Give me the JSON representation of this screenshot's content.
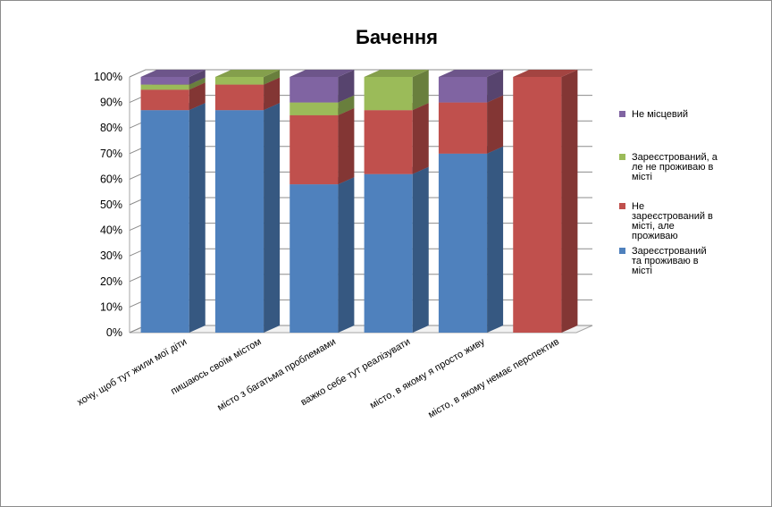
{
  "chart_data": {
    "type": "bar",
    "stacked": true,
    "percent_stacked": true,
    "three_d": true,
    "title": "Бачення",
    "xlabel": "",
    "ylabel": "",
    "ylim": [
      0,
      100
    ],
    "y_ticks": [
      "0%",
      "10%",
      "20%",
      "30%",
      "40%",
      "50%",
      "60%",
      "70%",
      "80%",
      "90%",
      "100%"
    ],
    "grid": true,
    "legend_position": "right",
    "categories": [
      "хочу, щоб тут жили мої діти",
      "пишаюсь своїм містом",
      "місто з багатьма проблемами",
      "важко себе тут реалізувати",
      "місто, в якому я просто живу",
      "місто, в якому немає перспектив"
    ],
    "series": [
      {
        "name": "Зареєстрований та проживаю в місті",
        "legend_lines": [
          "Зареєстрований",
          "та проживаю  в",
          "місті"
        ],
        "color": "#4f81bd",
        "values": [
          87,
          87,
          58,
          62,
          70,
          0
        ]
      },
      {
        "name": "Не зареєстрований в місті, але проживаю",
        "legend_lines": [
          "Не",
          "зареєстрований в",
          "місті, але",
          "проживаю"
        ],
        "color": "#c0504d",
        "values": [
          8,
          10,
          27,
          25,
          20,
          100
        ]
      },
      {
        "name": "Зареєстрований, але не проживаю в місті",
        "legend_lines": [
          "Зареєстрований, а",
          "ле не проживаю  в",
          "місті"
        ],
        "color": "#9bbb59",
        "values": [
          2,
          3,
          5,
          13,
          0,
          0
        ]
      },
      {
        "name": "Не місцевий",
        "legend_lines": [
          "Не місцевий"
        ],
        "color": "#8064a2",
        "values": [
          3,
          0,
          10,
          0,
          10,
          0
        ]
      }
    ]
  }
}
